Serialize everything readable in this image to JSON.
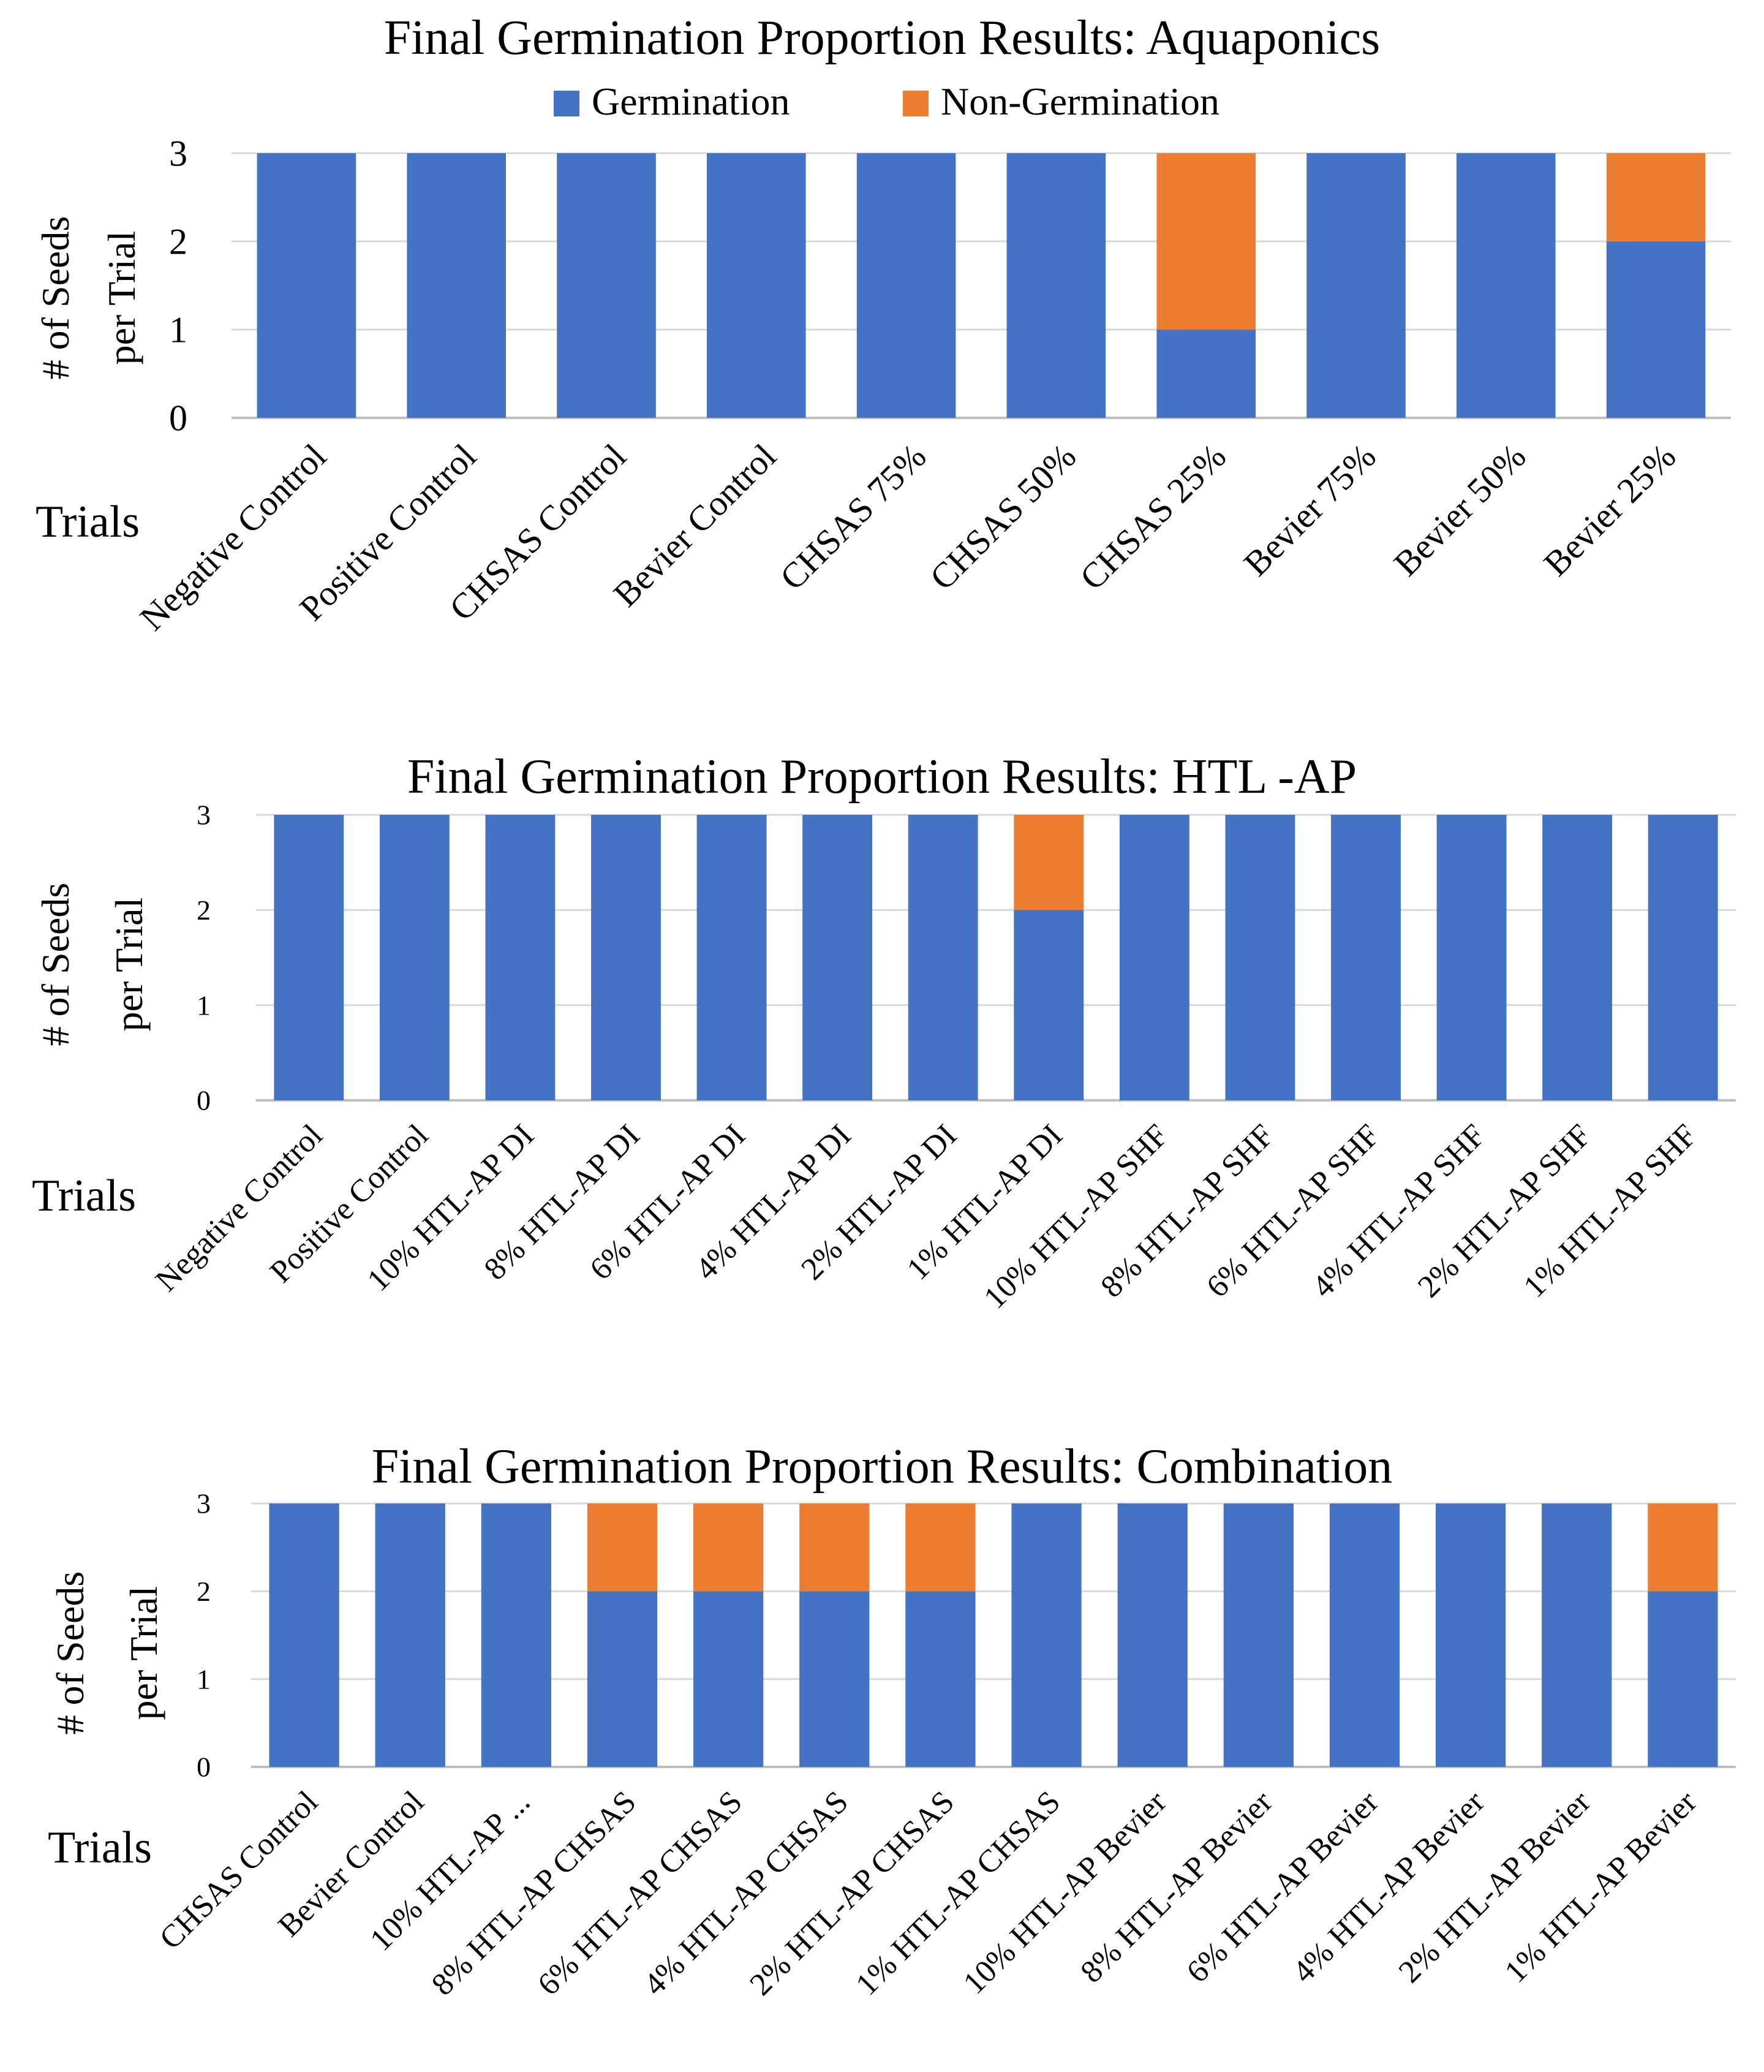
{
  "colors": {
    "germination": "#4472C4",
    "non_germination": "#ED7D31",
    "gridline": "#D9D9D9",
    "axis_line": "#BFBFBF"
  },
  "legend": {
    "germination_label": "Germination",
    "non_germination_label": "Non-Germination"
  },
  "chart_data": [
    {
      "type": "bar",
      "stacked": true,
      "title": "Final Germination Proportion Results: Aquaponics",
      "ylabel": [
        "# of Seeds",
        "per Trial"
      ],
      "xlabel": "Trials",
      "ylim": [
        0,
        3
      ],
      "yticks": [
        0,
        1,
        2,
        3
      ],
      "grid": true,
      "legend": "top",
      "categories": [
        "Negative Control",
        "Positive Control",
        "CHSAS Control",
        "Bevier Control",
        "CHSAS 75%",
        "CHSAS 50%",
        "CHSAS 25%",
        "Bevier 75%",
        "Bevier 50%",
        "Bevier 25%"
      ],
      "series": [
        {
          "name": "Germination",
          "values": [
            3,
            3,
            3,
            3,
            3,
            3,
            1,
            3,
            3,
            2
          ]
        },
        {
          "name": "Non-Germination",
          "values": [
            0,
            0,
            0,
            0,
            0,
            0,
            2,
            0,
            0,
            1
          ]
        }
      ]
    },
    {
      "type": "bar",
      "stacked": true,
      "title": "Final Germination Proportion Results: HTL -AP",
      "ylabel": [
        "# of Seeds",
        "per Trial"
      ],
      "xlabel": "Trials",
      "ylim": [
        0,
        3
      ],
      "yticks": [
        0,
        1,
        2,
        3
      ],
      "grid": true,
      "categories": [
        "Negative Control",
        "Positive Control",
        "10% HTL-AP DI",
        "8% HTL-AP DI",
        "6% HTL-AP DI",
        "4% HTL-AP DI",
        "2% HTL-AP DI",
        "1% HTL-AP DI",
        "10% HTL-AP SHF",
        "8% HTL-AP SHF",
        "6% HTL-AP SHF",
        "4% HTL-AP SHF",
        "2% HTL-AP SHF",
        "1% HTL-AP SHF"
      ],
      "series": [
        {
          "name": "Germination",
          "values": [
            3,
            3,
            3,
            3,
            3,
            3,
            3,
            2,
            3,
            3,
            3,
            3,
            3,
            3
          ]
        },
        {
          "name": "Non-Germination",
          "values": [
            0,
            0,
            0,
            0,
            0,
            0,
            0,
            1,
            0,
            0,
            0,
            0,
            0,
            0
          ]
        }
      ]
    },
    {
      "type": "bar",
      "stacked": true,
      "title": "Final Germination Proportion Results: Combination",
      "ylabel": [
        "# of Seeds",
        "per Trial"
      ],
      "xlabel": "Trials",
      "ylim": [
        0,
        3
      ],
      "yticks": [
        0,
        1,
        2,
        3
      ],
      "grid": true,
      "categories": [
        "CHSAS Control",
        "Bevier Control",
        "10% HTL-AP ...",
        "8% HTL-AP CHSAS",
        "6% HTL-AP CHSAS",
        "4% HTL-AP CHSAS",
        "2% HTL-AP CHSAS",
        "1% HTL-AP CHSAS",
        "10% HTL-AP Bevier",
        "8% HTL-AP Bevier",
        "6% HTL-AP Bevier",
        "4% HTL-AP Bevier",
        "2% HTL-AP Bevier",
        "1% HTL-AP Bevier"
      ],
      "series": [
        {
          "name": "Germination",
          "values": [
            3,
            3,
            3,
            2,
            2,
            2,
            2,
            3,
            3,
            3,
            3,
            3,
            3,
            2
          ]
        },
        {
          "name": "Non-Germination",
          "values": [
            0,
            0,
            0,
            1,
            1,
            1,
            1,
            0,
            0,
            0,
            0,
            0,
            0,
            1
          ]
        }
      ]
    }
  ]
}
